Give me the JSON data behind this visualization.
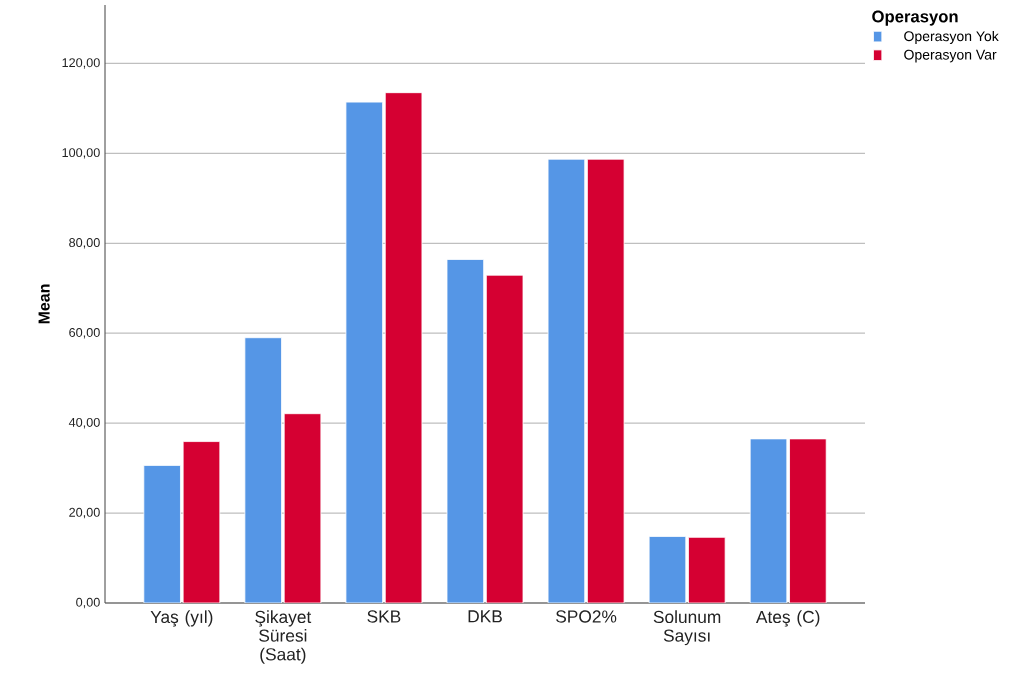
{
  "chart_data": {
    "type": "bar",
    "ylabel": "Mean",
    "legend_title": "Operasyon",
    "categories": [
      "Yaş (yıl)",
      "Şikayet Süresi (Saat)",
      "SKB",
      "DKB",
      "SPO2%",
      "Solunum Sayısı",
      "Ateş (C)"
    ],
    "series": [
      {
        "name": "Operasyon Yok",
        "color": "#5596e6",
        "values": [
          30.6,
          59.0,
          111.4,
          76.4,
          98.7,
          14.8,
          36.5
        ]
      },
      {
        "name": "Operasyon Var",
        "color": "#d50032",
        "values": [
          35.9,
          42.1,
          113.5,
          72.9,
          98.7,
          14.6,
          36.5
        ]
      }
    ],
    "ylim": [
      0,
      133
    ],
    "yticks": [
      {
        "value": 0,
        "label": "0,00"
      },
      {
        "value": 20,
        "label": "20,00"
      },
      {
        "value": 40,
        "label": "40,00"
      },
      {
        "value": 60,
        "label": "60,00"
      },
      {
        "value": 80,
        "label": "80,00"
      },
      {
        "value": 100,
        "label": "100,00"
      },
      {
        "value": 120,
        "label": "120,00"
      }
    ],
    "grid": "y",
    "legend": "top right"
  }
}
